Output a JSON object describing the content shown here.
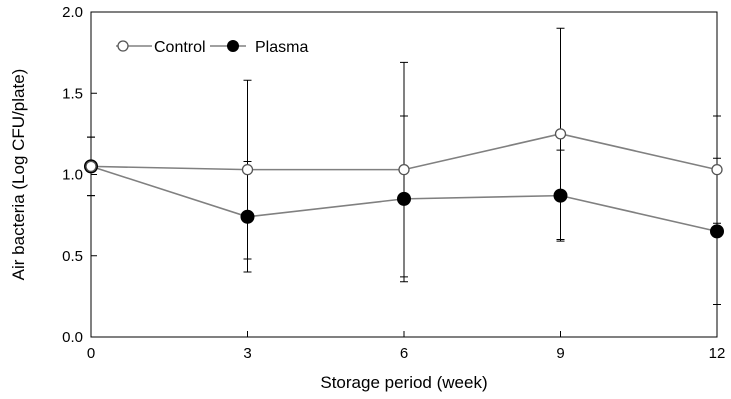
{
  "chart_data": {
    "type": "line",
    "xlabel": "Storage period (week)",
    "ylabel": "Air bacteria (Log CFU/plate)",
    "x": [
      0,
      3,
      6,
      9,
      12
    ],
    "xlim": [
      0,
      12
    ],
    "ylim": [
      0.0,
      2.0
    ],
    "xticks": [
      "0",
      "3",
      "6",
      "9",
      "12"
    ],
    "yticks": [
      "0.0",
      "0.5",
      "1.0",
      "1.5",
      "2.0"
    ],
    "grid": false,
    "legend_position": "top-left",
    "series": [
      {
        "name": "Control",
        "marker": "open-circle",
        "values": [
          1.05,
          1.03,
          1.03,
          1.25,
          1.03
        ],
        "error": [
          0.18,
          0.55,
          0.66,
          0.65,
          0.33
        ]
      },
      {
        "name": "Plasma",
        "marker": "filled-circle",
        "values": [
          1.05,
          0.74,
          0.85,
          0.87,
          0.65
        ],
        "error": [
          0.18,
          0.34,
          0.51,
          0.28,
          0.45
        ]
      }
    ],
    "colors": {
      "line": "#808080",
      "marker_fill_plasma": "#000000",
      "marker_fill_control": "#ffffff",
      "axis": "#000000"
    }
  }
}
